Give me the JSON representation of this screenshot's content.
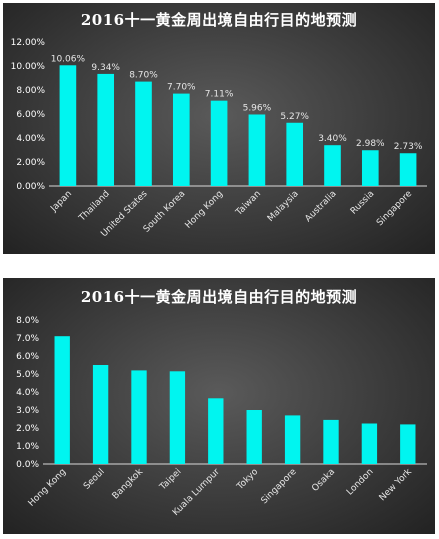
{
  "chart_data": [
    {
      "type": "bar",
      "title": "2016十一黄金周出境自由行目的地预测",
      "categories": [
        "Japan",
        "Thailand",
        "United States",
        "South Korea",
        "Hong Kong",
        "Taiwan",
        "Malaysia",
        "Australia",
        "Russia",
        "Singapore"
      ],
      "values": [
        10.06,
        9.34,
        8.7,
        7.7,
        7.11,
        5.96,
        5.27,
        3.4,
        2.98,
        2.73
      ],
      "data_labels": [
        "10.06%",
        "9.34%",
        "8.70%",
        "7.70%",
        "7.11%",
        "5.96%",
        "5.27%",
        "3.40%",
        "2.98%",
        "2.73%"
      ],
      "y_ticks": [
        "0.00%",
        "2.00%",
        "4.00%",
        "6.00%",
        "8.00%",
        "10.00%",
        "12.00%"
      ],
      "ylim": [
        0,
        12
      ],
      "grid": false,
      "legend": "none",
      "bar_color": "#00f5f0"
    },
    {
      "type": "bar",
      "title": "2016十一黄金周出境自由行目的地预测",
      "categories": [
        "Hong Kong",
        "Seoul",
        "Bangkok",
        "Taipei",
        "Kuala Lumpur",
        "Tokyo",
        "Singapore",
        "Osaka",
        "London",
        "New York"
      ],
      "values": [
        7.1,
        5.5,
        5.2,
        5.15,
        3.65,
        3.0,
        2.7,
        2.45,
        2.25,
        2.2
      ],
      "y_ticks": [
        "0.0%",
        "1.0%",
        "2.0%",
        "3.0%",
        "4.0%",
        "5.0%",
        "6.0%",
        "7.0%",
        "8.0%"
      ],
      "ylim": [
        0,
        8
      ],
      "grid": false,
      "legend": "none",
      "bar_color": "#00f5f0"
    }
  ]
}
